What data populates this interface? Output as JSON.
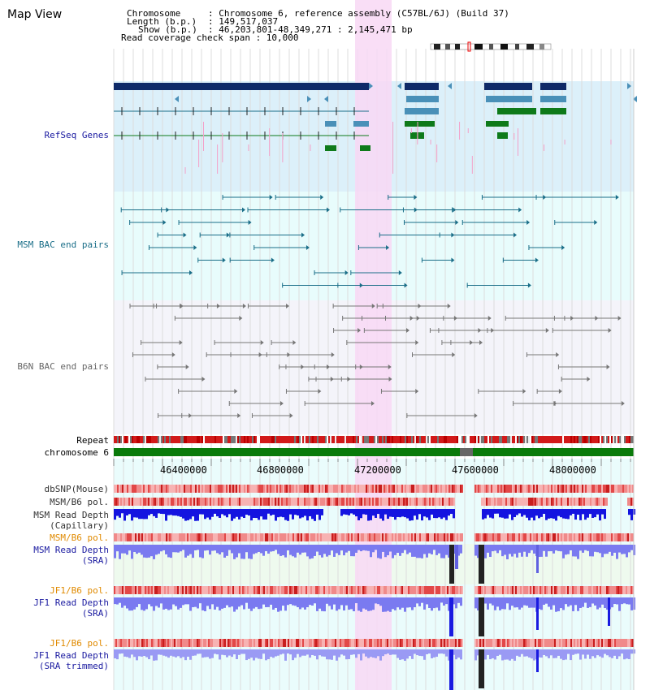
{
  "header": {
    "title": "Map View",
    "chromosome_key": "Chromosome",
    "chromosome_val": ": Chromosome 6, reference assembly (C57BL/6J) (Build 37)",
    "length_key": "Length (b.p.)",
    "length_val": ": 149,517,037",
    "show_key": "Show (b.p.)",
    "show_val": ": 46,203,801-48,349,271 : 2,145,471 bp",
    "read_coverage": "Read coverage check span : 10,000"
  },
  "tracks": {
    "refseq": "RefSeq Genes",
    "msm_bac": "MSM BAC end pairs",
    "b6n_bac": "B6N BAC end pairs",
    "repeat": "Repeat",
    "chromosome": "chromosome 6"
  },
  "axis": {
    "ticks": [
      "46400000",
      "46800000",
      "47200000",
      "47600000",
      "48000000"
    ]
  },
  "lanes": {
    "dbsnp": "dbSNP(Mouse)",
    "msm_b6_pol_1": "MSM/B6 pol.",
    "msm_read_depth_cap_1": "MSM Read Depth",
    "msm_read_depth_cap_2": "(Capillary)",
    "msm_b6_pol_2": "MSM/B6 pol.",
    "msm_read_depth_sra_1": "MSM Read Depth",
    "msm_read_depth_sra_2": "(SRA)",
    "jf1_b6_pol_1": "JF1/B6 pol.",
    "jf1_read_depth_sra_1": "JF1 Read Depth",
    "jf1_read_depth_sra_2": "(SRA)",
    "jf1_b6_pol_2": "JF1/B6 pol.",
    "jf1_read_depth_trim_1": "JF1 Read Depth",
    "jf1_read_depth_trim_2": "(SRA trimmed)"
  },
  "colors": {
    "refseq_bg": "#dcf0fa",
    "msm_bg": "#e8fcfc",
    "b6n_bg": "#f4f4fa",
    "highlight": "#f8d8f4",
    "refseq_dark": "#0e2a68",
    "refseq_mid": "#4a90b8",
    "refseq_green": "#0e7a1a",
    "msm_line": "#1a6e88",
    "b6n_line": "#777777",
    "repeat_red": "#d21a1a",
    "chrom_green": "#0a7a0a",
    "label_blue": "#1a1aa0",
    "label_teal": "#1a6e88",
    "label_gray": "#666666",
    "label_orange": "#e08a00",
    "capillary_blue": "#1414e0",
    "sra_blue": "#7a7af0",
    "pol_red": "#ee5050"
  }
}
